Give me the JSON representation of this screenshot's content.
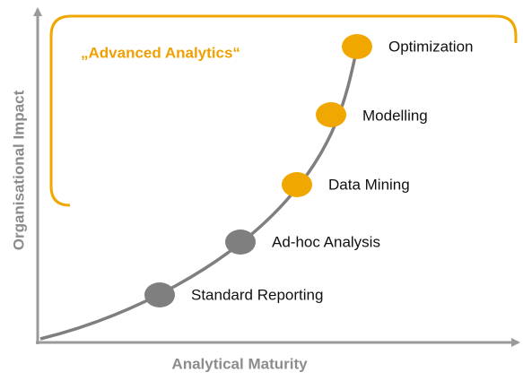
{
  "bracket_label": "„Advanced Analytics“",
  "x_axis_label": "Analytical Maturity",
  "y_axis_label": "Organisational Impact",
  "nodes": [
    {
      "label": "Standard Reporting"
    },
    {
      "label": "Ad-hoc Analysis"
    },
    {
      "label": "Data Mining"
    },
    {
      "label": "Modelling"
    },
    {
      "label": "Optimization"
    }
  ]
}
